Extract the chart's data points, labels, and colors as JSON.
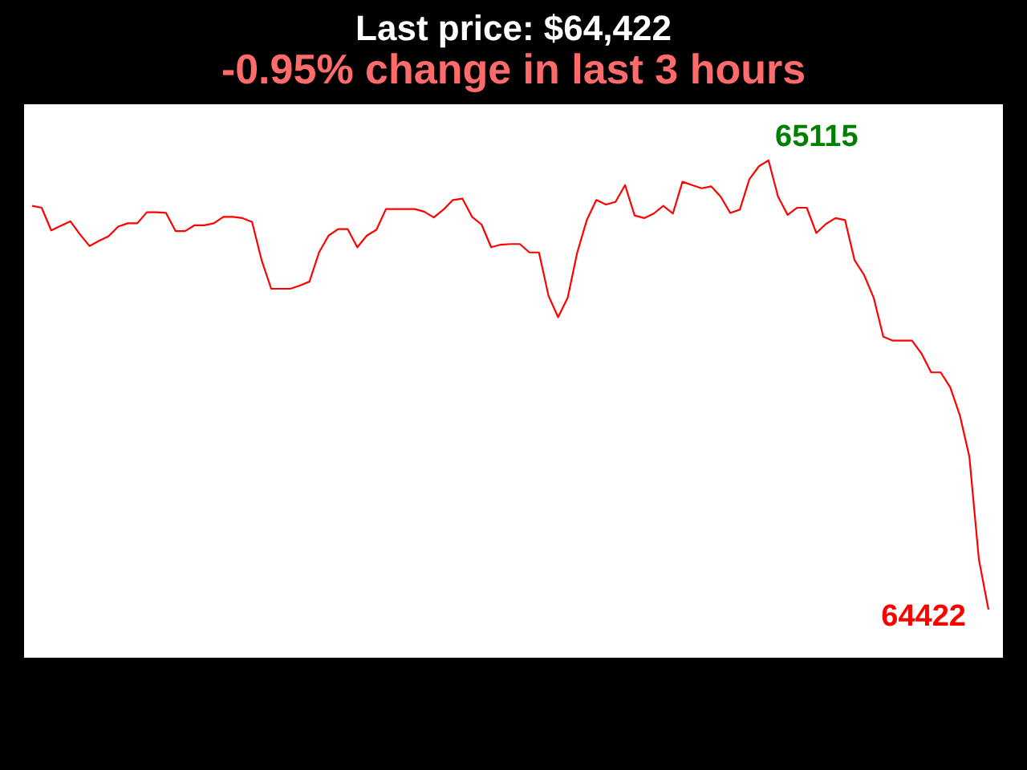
{
  "chart_data": {
    "type": "line",
    "title": "Last price: $64,422",
    "subtitle": "-0.95% change in last 3 hours",
    "categories": [
      null,
      null,
      null,
      null,
      null,
      null,
      null,
      null,
      null,
      null,
      null,
      null,
      null,
      null,
      null,
      null,
      null,
      null,
      null,
      null,
      null,
      null,
      null,
      null,
      null,
      null,
      null,
      null,
      null,
      null,
      null,
      null,
      null,
      null,
      null,
      null,
      null,
      null,
      null,
      null,
      null,
      null,
      null,
      null,
      null,
      null,
      null,
      null,
      null,
      null,
      null,
      null,
      null,
      null,
      null,
      null,
      null,
      null,
      null,
      null,
      null,
      null,
      null,
      null,
      null,
      null,
      null,
      null,
      null,
      null,
      null,
      null,
      null,
      null,
      null,
      null,
      null,
      null,
      null,
      null,
      null,
      null,
      null,
      null,
      null,
      null,
      null,
      null,
      null,
      null,
      null,
      null,
      null,
      null,
      null,
      null,
      null,
      null,
      null,
      null,
      null
    ],
    "series": [
      {
        "color": "#ff0000",
        "values": [
          65045,
          65042,
          65007,
          65014,
          65021,
          65001,
          64983,
          64991,
          64998,
          65013,
          65018,
          65018,
          65035,
          65035,
          65034,
          65006,
          65006,
          65015,
          65015,
          65018,
          65028,
          65028,
          65026,
          65020,
          64961,
          64917,
          64917,
          64917,
          64922,
          64928,
          64973,
          64999,
          65009,
          65009,
          64981,
          64999,
          65008,
          65040,
          65040,
          65040,
          65040,
          65036,
          65027,
          65039,
          65054,
          65056,
          65028,
          65016,
          64981,
          64985,
          64986,
          64986,
          64973,
          64973,
          64906,
          64873,
          64903,
          64973,
          65023,
          65054,
          65047,
          65051,
          65077,
          65030,
          65026,
          65033,
          65045,
          65033,
          65082,
          65077,
          65072,
          65075,
          65059,
          65034,
          65039,
          65086,
          65106,
          65115,
          65059,
          65031,
          65042,
          65042,
          65003,
          65017,
          65026,
          65023,
          64961,
          64938,
          64903,
          64843,
          64837,
          64837,
          64837,
          64817,
          64788,
          64788,
          64765,
          64722,
          64658,
          64499,
          64422
        ],
        "value_labels": [
          null,
          null,
          null,
          null,
          null,
          null,
          null,
          null,
          null,
          null,
          null,
          null,
          null,
          null,
          null,
          null,
          null,
          null,
          null,
          null,
          null,
          null,
          null,
          null,
          null,
          null,
          null,
          null,
          null,
          null,
          null,
          null,
          null,
          null,
          null,
          null,
          null,
          null,
          null,
          null,
          null,
          null,
          null,
          null,
          null,
          null,
          null,
          null,
          null,
          null,
          null,
          null,
          null,
          null,
          null,
          null,
          null,
          null,
          null,
          null,
          null,
          null,
          null,
          null,
          null,
          null,
          null,
          null,
          null,
          null,
          null,
          null,
          null,
          null,
          null,
          null,
          null,
          "65115",
          null,
          null,
          null,
          null,
          null,
          null,
          null,
          null,
          null,
          null,
          null,
          null,
          null,
          null,
          null,
          null,
          null,
          null,
          null,
          null,
          null,
          null,
          "64422"
        ]
      }
    ]
  }
}
